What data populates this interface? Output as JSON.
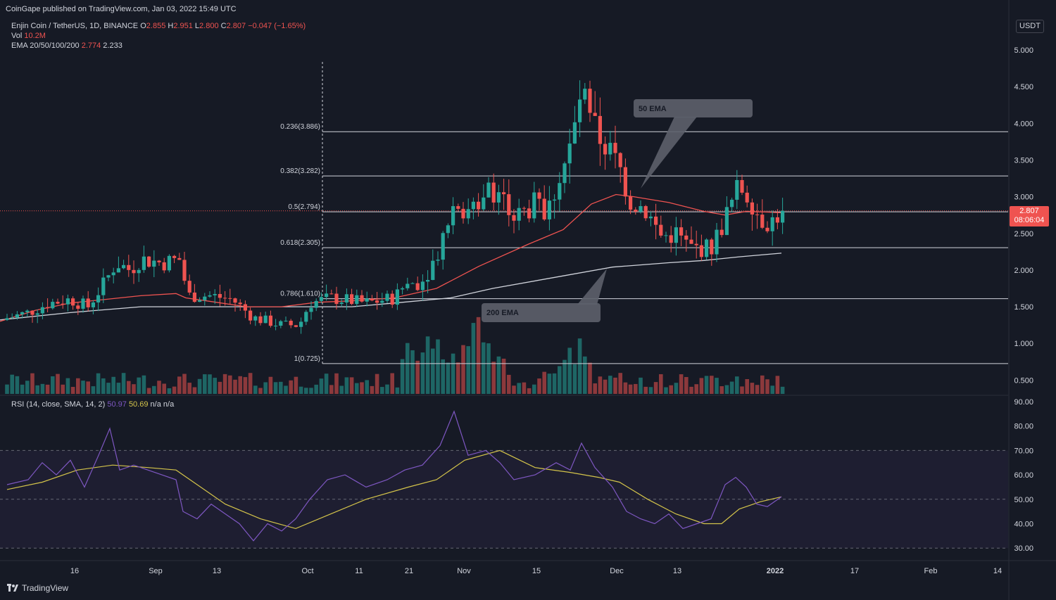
{
  "publisher_line": "CoinGape published on TradingView.com, Jan 03, 2022 15:49 UTC",
  "symbol": {
    "name": "Enjin Coin / TetherUS, 1D, BINANCE",
    "o_label": "O",
    "o": "2.855",
    "h_label": "H",
    "h": "2.951",
    "l_label": "L",
    "l": "2.800",
    "c_label": "C",
    "c": "2.807",
    "change": "−0.047 (−1.65%)"
  },
  "vol": {
    "label": "Vol",
    "value": "10.2M"
  },
  "ema": {
    "label": "EMA 20/50/100/200",
    "v1": "2.774",
    "v2": "2.233"
  },
  "rsi_header": {
    "label": "RSI (14, close, SMA, 14, 2)",
    "v1": "50.97",
    "v2": "50.69",
    "v3": "n/a",
    "v4": "n/a"
  },
  "currency_badge": "USDT",
  "price_badge": {
    "value": "2.807",
    "countdown": "08:06:04"
  },
  "footer_logo": "TradingView",
  "colors": {
    "up": "#26a69a",
    "down": "#ef5350",
    "ema50": "#ef5350",
    "ema200": "#d1d4dc",
    "rsi": "#7e57c2",
    "rsi_ma": "#d4c44a",
    "bg": "#161a25"
  },
  "chart_data": {
    "type": "candlestick",
    "price_axis": {
      "ticks": [
        "5.000",
        "4.500",
        "4.000",
        "3.500",
        "3.000",
        "2.500",
        "2.000",
        "1.500",
        "1.000",
        "0.500"
      ],
      "ylim": [
        0.4,
        5.3
      ]
    },
    "rsi_axis": {
      "ticks": [
        "90.00",
        "80.00",
        "70.00",
        "60.00",
        "50.00",
        "40.00",
        "30.00"
      ],
      "ylim": [
        27,
        91
      ]
    },
    "x_labels": [
      "16",
      "Sep",
      "13",
      "Oct",
      "11",
      "21",
      "Nov",
      "15",
      "Dec",
      "13",
      "2022",
      "17",
      "Feb",
      "14"
    ],
    "fib_levels": [
      {
        "label": "0.236(3.886)",
        "value": 3.886
      },
      {
        "label": "0.382(3.282)",
        "value": 3.282
      },
      {
        "label": "0.5(2.794)",
        "value": 2.794
      },
      {
        "label": "0.618(2.305)",
        "value": 2.305
      },
      {
        "label": "0.786(1.610)",
        "value": 1.61
      },
      {
        "label": "1(0.725)",
        "value": 0.725
      }
    ],
    "annotations": [
      {
        "text": "50 EMA"
      },
      {
        "text": "200 EMA"
      }
    ],
    "series": {
      "ema50": [
        [
          0,
          1.3
        ],
        [
          50,
          1.45
        ],
        [
          100,
          1.55
        ],
        [
          150,
          1.6
        ],
        [
          200,
          1.65
        ],
        [
          250,
          1.68
        ],
        [
          264,
          1.62
        ],
        [
          300,
          1.57
        ],
        [
          350,
          1.5
        ],
        [
          400,
          1.5
        ],
        [
          450,
          1.56
        ],
        [
          500,
          1.58
        ],
        [
          560,
          1.62
        ],
        [
          620,
          1.75
        ],
        [
          680,
          2.05
        ],
        [
          750,
          2.35
        ],
        [
          800,
          2.55
        ],
        [
          840,
          2.9
        ],
        [
          875,
          3.03
        ],
        [
          900,
          3.0
        ],
        [
          950,
          2.92
        ],
        [
          1000,
          2.8
        ],
        [
          1030,
          2.75
        ],
        [
          1060,
          2.8
        ],
        [
          1090,
          2.79
        ],
        [
          1110,
          2.78
        ]
      ],
      "ema200": [
        [
          0,
          1.32
        ],
        [
          100,
          1.42
        ],
        [
          200,
          1.5
        ],
        [
          300,
          1.5
        ],
        [
          400,
          1.5
        ],
        [
          500,
          1.5
        ],
        [
          560,
          1.55
        ],
        [
          640,
          1.62
        ],
        [
          700,
          1.75
        ],
        [
          800,
          1.92
        ],
        [
          870,
          2.04
        ],
        [
          950,
          2.1
        ],
        [
          1000,
          2.13
        ],
        [
          1050,
          2.18
        ],
        [
          1110,
          2.23
        ]
      ],
      "rsi": [
        [
          10,
          56
        ],
        [
          40,
          58
        ],
        [
          60,
          65
        ],
        [
          80,
          60
        ],
        [
          100,
          66
        ],
        [
          120,
          55
        ],
        [
          140,
          68
        ],
        [
          156,
          79
        ],
        [
          170,
          62
        ],
        [
          190,
          64
        ],
        [
          210,
          62
        ],
        [
          230,
          60
        ],
        [
          250,
          58
        ],
        [
          260,
          45
        ],
        [
          280,
          42
        ],
        [
          300,
          48
        ],
        [
          320,
          44
        ],
        [
          340,
          40
        ],
        [
          360,
          33
        ],
        [
          380,
          40
        ],
        [
          400,
          37
        ],
        [
          420,
          42
        ],
        [
          440,
          50
        ],
        [
          465,
          58
        ],
        [
          490,
          60
        ],
        [
          520,
          55
        ],
        [
          550,
          58
        ],
        [
          575,
          62
        ],
        [
          600,
          64
        ],
        [
          625,
          72
        ],
        [
          645,
          86
        ],
        [
          665,
          68
        ],
        [
          690,
          70
        ],
        [
          710,
          65
        ],
        [
          730,
          58
        ],
        [
          760,
          60
        ],
        [
          790,
          65
        ],
        [
          810,
          62
        ],
        [
          826,
          73
        ],
        [
          845,
          63
        ],
        [
          870,
          55
        ],
        [
          890,
          45
        ],
        [
          910,
          42
        ],
        [
          930,
          40
        ],
        [
          950,
          44
        ],
        [
          970,
          38
        ],
        [
          990,
          40
        ],
        [
          1010,
          42
        ],
        [
          1030,
          56
        ],
        [
          1045,
          59
        ],
        [
          1060,
          55
        ],
        [
          1075,
          48
        ],
        [
          1090,
          47
        ],
        [
          1110,
          51
        ]
      ],
      "rsi_ma": [
        [
          10,
          54
        ],
        [
          60,
          57
        ],
        [
          110,
          62
        ],
        [
          160,
          64
        ],
        [
          210,
          63
        ],
        [
          250,
          62
        ],
        [
          280,
          56
        ],
        [
          320,
          48
        ],
        [
          370,
          42
        ],
        [
          420,
          38
        ],
        [
          470,
          44
        ],
        [
          520,
          50
        ],
        [
          580,
          55
        ],
        [
          620,
          58
        ],
        [
          660,
          66
        ],
        [
          710,
          70
        ],
        [
          760,
          63
        ],
        [
          810,
          61
        ],
        [
          850,
          59
        ],
        [
          880,
          57
        ],
        [
          920,
          50
        ],
        [
          960,
          44
        ],
        [
          1000,
          40
        ],
        [
          1025,
          40
        ],
        [
          1050,
          46
        ],
        [
          1080,
          49
        ],
        [
          1110,
          51
        ]
      ]
    }
  }
}
